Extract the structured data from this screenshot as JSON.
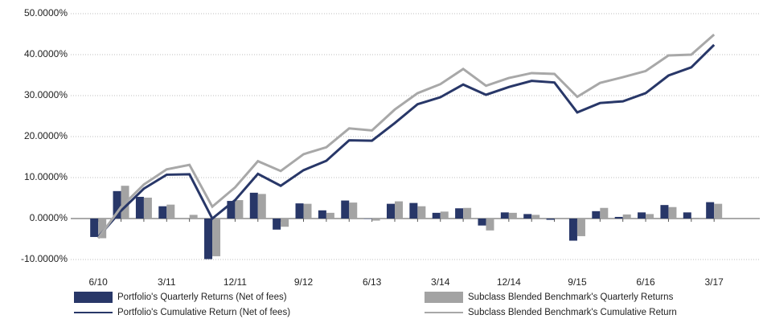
{
  "chart_data": {
    "type": "bar_line",
    "categories": [
      "6/10",
      null,
      null,
      "3/11",
      null,
      null,
      "12/11",
      null,
      null,
      "9/12",
      null,
      null,
      "6/13",
      null,
      null,
      "3/14",
      null,
      null,
      "12/14",
      null,
      null,
      "9/15",
      null,
      null,
      "6/16",
      null,
      null,
      "3/17"
    ],
    "series": [
      {
        "name": "Portfolio's Quarterly Returns (Net of fees)",
        "kind": "bar",
        "color": "#283768",
        "values": [
          -4.5,
          6.7,
          5.3,
          3.0,
          0.0,
          -9.9,
          4.3,
          6.3,
          -2.7,
          3.7,
          2.0,
          4.4,
          -0.1,
          3.6,
          3.8,
          1.4,
          2.5,
          -1.7,
          1.5,
          1.1,
          -0.3,
          -5.4,
          1.8,
          0.4,
          1.5,
          3.3,
          1.5,
          4.0
        ]
      },
      {
        "name": "Subclass Blended Benchmark's Quarterly Returns",
        "kind": "bar",
        "color": "#a3a3a3",
        "values": [
          -4.8,
          8.0,
          5.1,
          3.4,
          0.9,
          -9.2,
          4.5,
          6.0,
          -2.0,
          3.6,
          1.4,
          3.9,
          -0.5,
          4.2,
          3.0,
          1.7,
          2.6,
          -2.9,
          1.4,
          0.9,
          0.0,
          -4.3,
          2.6,
          1.0,
          1.1,
          2.8,
          0.2,
          3.6
        ]
      },
      {
        "name": "Portfolio's Cumulative Return (Net of fees)",
        "kind": "line",
        "color": "#283768",
        "values": [
          -4.5,
          1.9,
          7.3,
          10.7,
          10.8,
          0.0,
          4.5,
          10.9,
          8.0,
          11.8,
          14.1,
          19.1,
          19.0,
          23.3,
          27.9,
          29.6,
          32.7,
          30.2,
          32.1,
          33.6,
          33.2,
          25.9,
          28.2,
          28.6,
          30.6,
          34.9,
          36.9,
          42.4
        ]
      },
      {
        "name": "Subclass Blended Benchmark's Cumulative Return",
        "kind": "line",
        "color": "#a8a8a8",
        "values": [
          -4.8,
          2.8,
          8.3,
          12.0,
          13.1,
          2.9,
          7.6,
          14.0,
          11.6,
          15.7,
          17.4,
          22.0,
          21.5,
          26.6,
          30.6,
          32.8,
          36.5,
          32.4,
          34.3,
          35.5,
          35.3,
          29.7,
          33.1,
          34.5,
          36.0,
          39.8,
          40.0,
          44.9
        ]
      }
    ],
    "ylim": [
      -10,
      50
    ],
    "yticks": [
      {
        "value": -10,
        "label": "-10.0000%"
      },
      {
        "value": 0,
        "label": "0.0000%"
      },
      {
        "value": 10,
        "label": "10.0000%"
      },
      {
        "value": 20,
        "label": "20.0000%"
      },
      {
        "value": 30,
        "label": "30.0000%"
      },
      {
        "value": 40,
        "label": "40.0000%"
      },
      {
        "value": 50,
        "label": "50.0000%"
      }
    ],
    "grid": true,
    "legend": "bottom"
  }
}
